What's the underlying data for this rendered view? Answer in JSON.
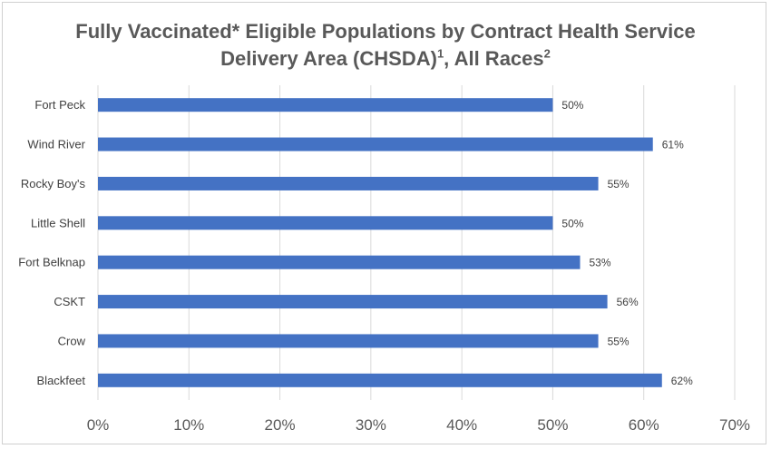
{
  "chart_data": {
    "type": "bar",
    "orientation": "horizontal",
    "title_line1": "Fully Vaccinated* Eligible Populations by Contract Health Service",
    "title_line2_main": "Delivery Area (CHSDA)",
    "title_sup1": "1",
    "title_line2_mid": ", All Races",
    "title_sup2": "2",
    "categories": [
      "Fort Peck",
      "Wind River",
      "Rocky Boy's",
      "Little Shell",
      "Fort Belknap",
      "CSKT",
      "Crow",
      "Blackfeet"
    ],
    "values": [
      50,
      61,
      55,
      50,
      53,
      56,
      55,
      62
    ],
    "value_labels": [
      "50%",
      "61%",
      "55%",
      "50%",
      "53%",
      "56%",
      "55%",
      "62%"
    ],
    "x_ticks": [
      0,
      10,
      20,
      30,
      40,
      50,
      60,
      70
    ],
    "x_tick_labels": [
      "0%",
      "10%",
      "20%",
      "30%",
      "40%",
      "50%",
      "60%",
      "70%"
    ],
    "xlim": [
      0,
      70
    ],
    "xlabel": "",
    "ylabel": "",
    "grid": "vertical",
    "legend": "none",
    "colors": {
      "bar": "#4472C4",
      "grid": "#d9d9d9",
      "title": "#595959"
    }
  }
}
